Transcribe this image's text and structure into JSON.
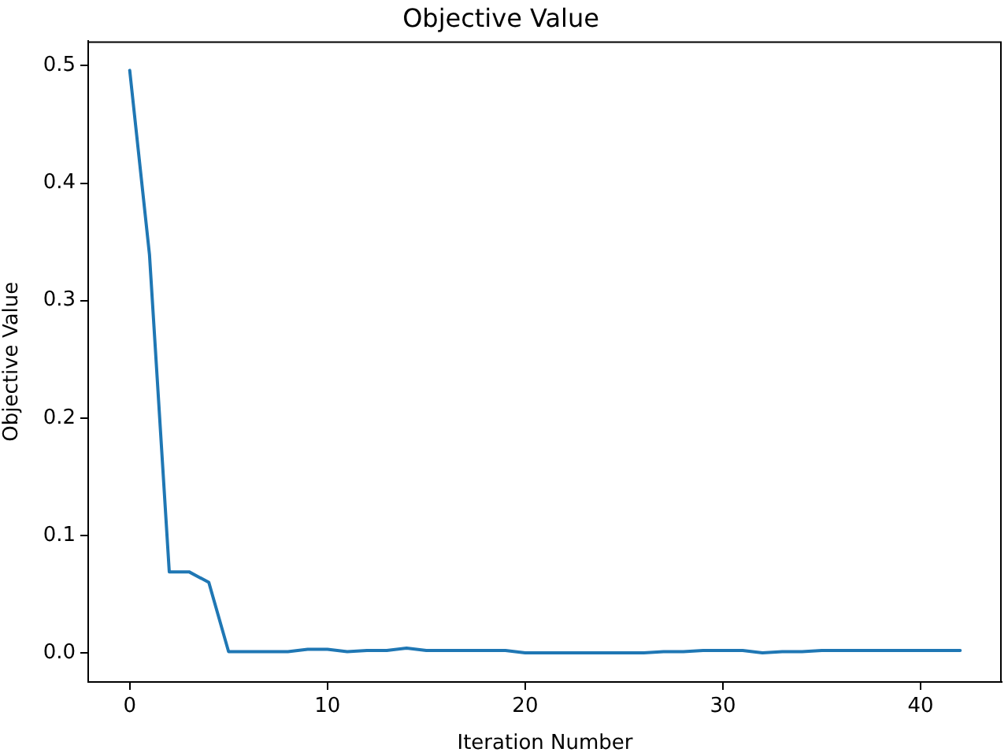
{
  "chart_data": {
    "type": "line",
    "title": "Objective Value",
    "xlabel": "Iteration Number",
    "ylabel": "Objective Value",
    "x": [
      0,
      1,
      2,
      3,
      4,
      5,
      6,
      7,
      8,
      9,
      10,
      11,
      12,
      13,
      14,
      15,
      16,
      17,
      18,
      19,
      20,
      21,
      22,
      23,
      24,
      25,
      26,
      27,
      28,
      29,
      30,
      31,
      32,
      33,
      34,
      35,
      36,
      37,
      38,
      39,
      40,
      41,
      42
    ],
    "series": [
      {
        "color": "#1f77b4",
        "values": [
          0.496,
          0.339,
          0.069,
          0.069,
          0.06,
          0.001,
          0.001,
          0.001,
          0.001,
          0.003,
          0.003,
          0.001,
          0.002,
          0.002,
          0.004,
          0.002,
          0.002,
          0.002,
          0.002,
          0.002,
          0.0,
          0.0,
          0.0,
          0.0,
          0.0,
          0.0,
          0.0,
          0.001,
          0.001,
          0.002,
          0.002,
          0.002,
          0.0,
          0.001,
          0.001,
          0.002,
          0.002,
          0.002,
          0.002,
          0.002,
          0.002,
          0.002,
          0.002
        ]
      }
    ],
    "xlim": [
      -2.1,
      44.1
    ],
    "xticks": [
      0,
      10,
      20,
      30,
      40
    ],
    "ylim": [
      -0.0248,
      0.5208
    ],
    "yticks": [
      {
        "value": 0,
        "label": "0.0"
      },
      0.1,
      0.2,
      0.3,
      0.4,
      0.5
    ],
    "marker": "none",
    "line_style": "solid"
  }
}
